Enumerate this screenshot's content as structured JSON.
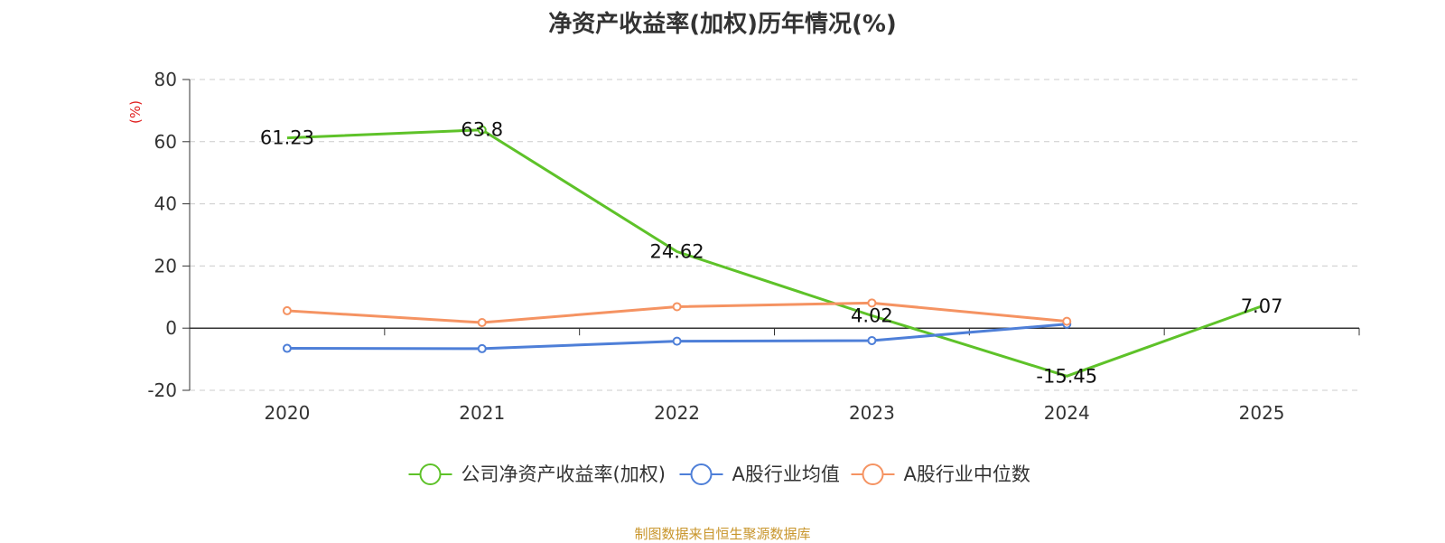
{
  "chart_data": {
    "type": "line",
    "title": "净资产收益率(加权)历年情况(%)",
    "ylabel": "(%)",
    "categories": [
      "2020",
      "2021",
      "2022",
      "2023",
      "2024",
      "2025"
    ],
    "ylim": [
      -20,
      80
    ],
    "yticks": [
      "-20",
      "0",
      "20",
      "40",
      "60",
      "80"
    ],
    "grid": true,
    "legend_position": "bottom",
    "series": [
      {
        "name": "公司净资产收益率(加权)",
        "color": "#5ec229",
        "values": [
          61.23,
          63.8,
          24.62,
          4.02,
          -15.45,
          7.07
        ],
        "labels": [
          "61.23",
          "63.8",
          "24.62",
          "4.02",
          "-15.45",
          "7.07"
        ],
        "markers": [
          false,
          true,
          false,
          false,
          false,
          false
        ]
      },
      {
        "name": "A股行业均值",
        "color": "#4e7fd8",
        "values": [
          -6.5,
          -6.6,
          -4.2,
          -4.0,
          1.3,
          null
        ],
        "markers": [
          true,
          true,
          true,
          true,
          true,
          false
        ]
      },
      {
        "name": "A股行业中位数",
        "color": "#f59362",
        "values": [
          5.6,
          1.8,
          6.9,
          8.1,
          2.2,
          null
        ],
        "markers": [
          true,
          true,
          true,
          true,
          true,
          false
        ]
      }
    ]
  },
  "source_note": "制图数据来自恒生聚源数据库"
}
